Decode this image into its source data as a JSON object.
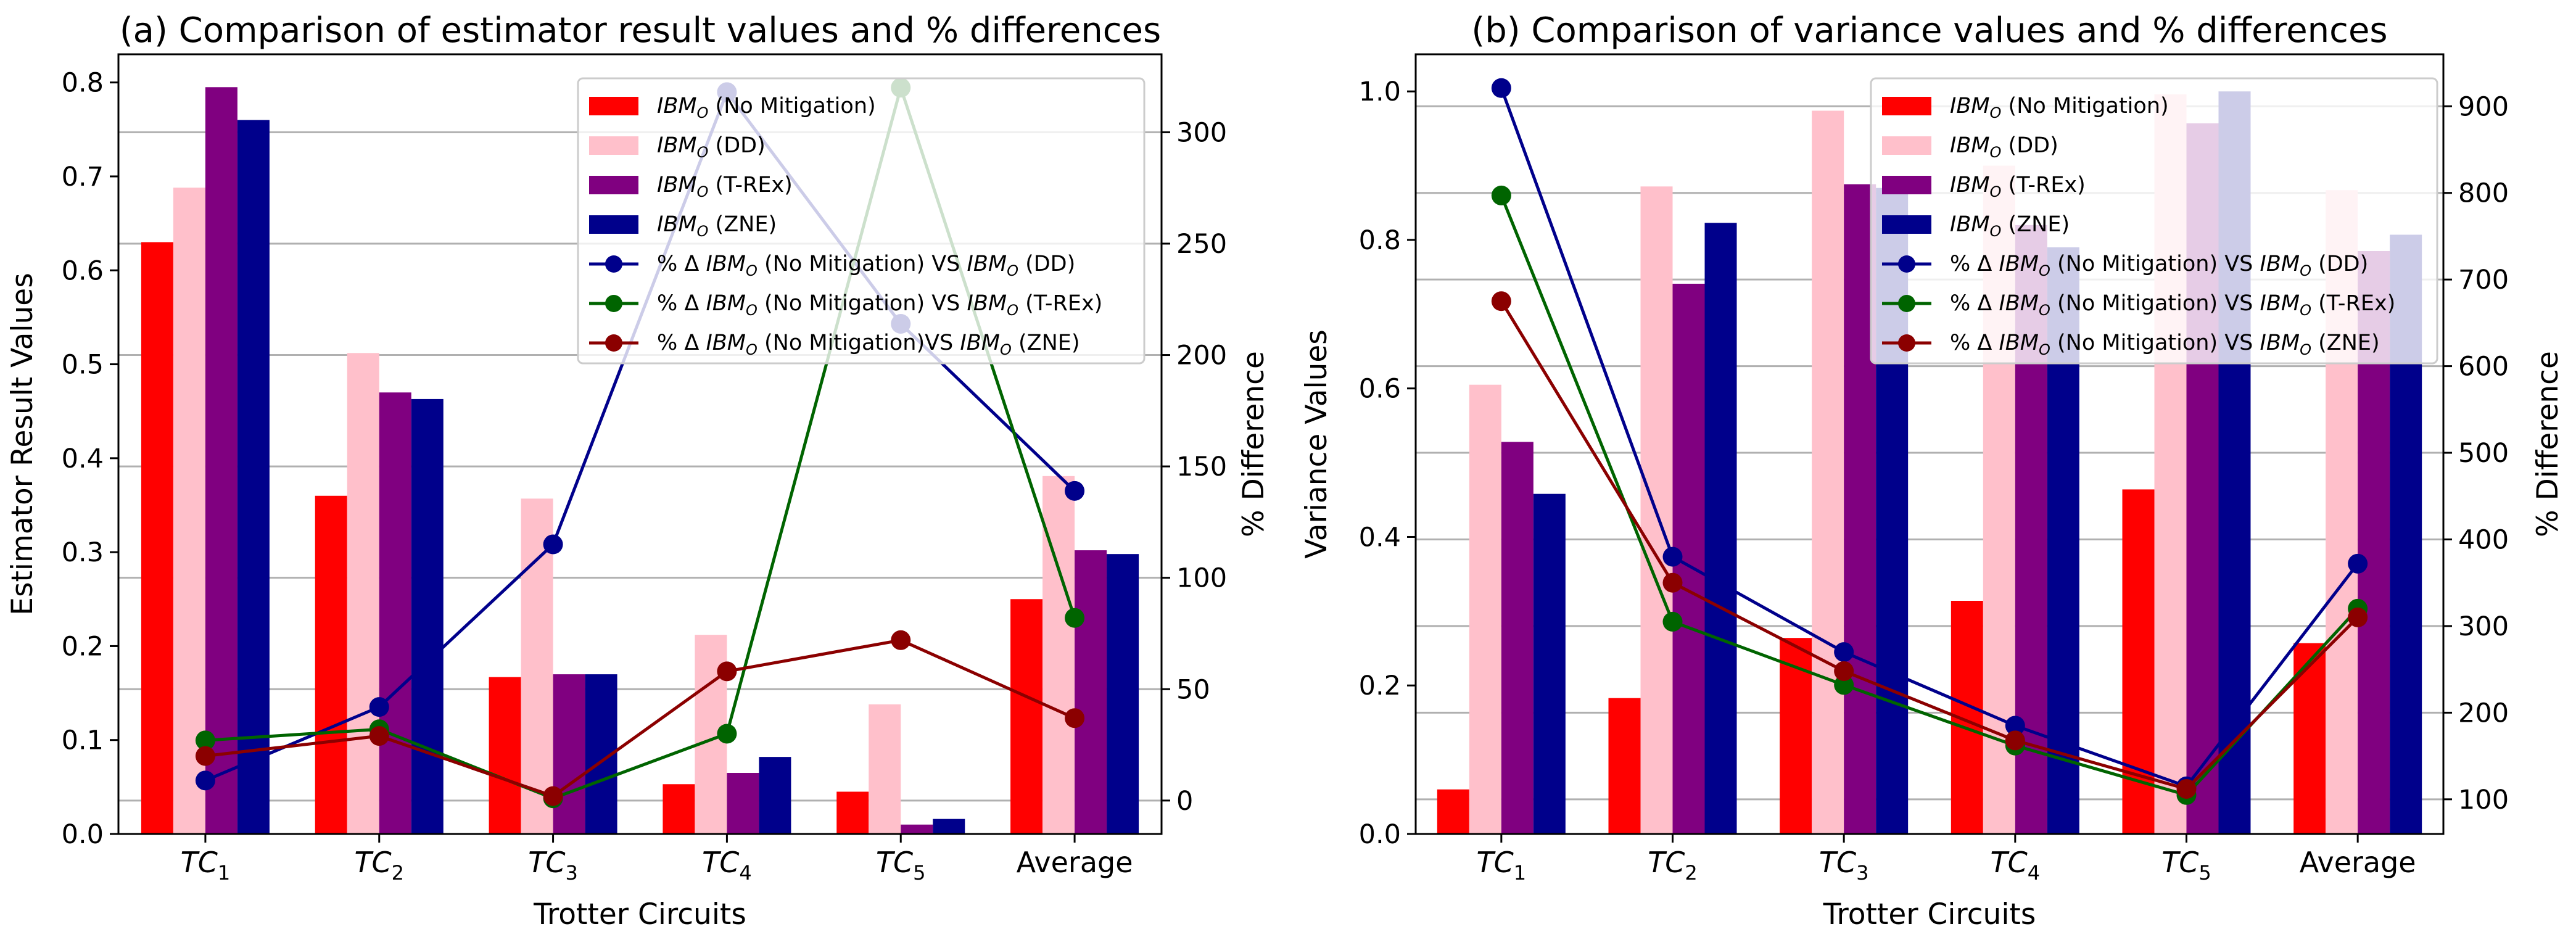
{
  "chart_data": [
    {
      "type": "bar",
      "title": "(a) Comparison of estimator result values and % differences",
      "xlabel": "Trotter Circuits",
      "ylabel": "Estimator Result Values",
      "y2label": "% Difference",
      "categories": [
        [
          "TC",
          "1"
        ],
        [
          "TC",
          "2"
        ],
        [
          "TC",
          "3"
        ],
        [
          "TC",
          "4"
        ],
        [
          "TC",
          "5"
        ],
        [
          "Average",
          ""
        ]
      ],
      "ylim": [
        0,
        0.83
      ],
      "yticks": [
        0.0,
        0.1,
        0.2,
        0.3,
        0.4,
        0.5,
        0.6,
        0.7,
        0.8
      ],
      "ytick_labels": [
        "0.0",
        "0.1",
        "0.2",
        "0.3",
        "0.4",
        "0.5",
        "0.6",
        "0.7",
        "0.8"
      ],
      "y2lim": [
        -15,
        335
      ],
      "y2ticks": [
        0,
        50,
        100,
        150,
        200,
        250,
        300
      ],
      "y2tick_labels": [
        "0",
        "50",
        "100",
        "150",
        "200",
        "250",
        "300"
      ],
      "grid": "horizontal (right axis)",
      "legend_position": "top-right",
      "bar_series": [
        {
          "name": "(No Mitigation)",
          "color": "#ff0000",
          "values": [
            0.63,
            0.36,
            0.167,
            0.053,
            0.045,
            0.25
          ]
        },
        {
          "name": "(DD)",
          "color": "#ffc0cb",
          "values": [
            0.688,
            0.512,
            0.357,
            0.212,
            0.138,
            0.381
          ]
        },
        {
          "name": "(T-REx)",
          "color": "#800080",
          "values": [
            0.795,
            0.47,
            0.17,
            0.065,
            0.01,
            0.302
          ]
        },
        {
          "name": "(ZNE)",
          "color": "#00008b",
          "values": [
            0.76,
            0.463,
            0.17,
            0.082,
            0.016,
            0.298
          ]
        }
      ],
      "line_series": [
        {
          "name": "VS",
          "ref": "(DD)",
          "color": "#00008b",
          "values": [
            9,
            42,
            115,
            318,
            214,
            139
          ]
        },
        {
          "name": "VS",
          "ref": "(T-REx)",
          "color": "#006400",
          "values": [
            27,
            32,
            1,
            30,
            320,
            82
          ]
        },
        {
          "name": "VS",
          "ref": "(ZNE)",
          "color": "#8b0000",
          "values": [
            20,
            29,
            2,
            58,
            72,
            37
          ]
        }
      ]
    },
    {
      "type": "bar",
      "title": "(b) Comparison of variance values and % differences",
      "xlabel": "Trotter Circuits",
      "ylabel": "Variance Values",
      "y2label": "% Difference",
      "categories": [
        [
          "TC",
          "1"
        ],
        [
          "TC",
          "2"
        ],
        [
          "TC",
          "3"
        ],
        [
          "TC",
          "4"
        ],
        [
          "TC",
          "5"
        ],
        [
          "Average",
          ""
        ]
      ],
      "ylim": [
        0,
        1.05
      ],
      "yticks": [
        0.0,
        0.2,
        0.4,
        0.6,
        0.8,
        1.0
      ],
      "ytick_labels": [
        "0.0",
        "0.2",
        "0.4",
        "0.6",
        "0.8",
        "1.0"
      ],
      "y2lim": [
        60,
        960
      ],
      "y2ticks": [
        100,
        200,
        300,
        400,
        500,
        600,
        700,
        800,
        900
      ],
      "y2tick_labels": [
        "100",
        "200",
        "300",
        "400",
        "500",
        "600",
        "700",
        "800",
        "900"
      ],
      "grid": "horizontal (right axis)",
      "legend_position": "top-right",
      "bar_series": [
        {
          "name": "(No Mitigation)",
          "color": "#ff0000",
          "values": [
            0.06,
            0.183,
            0.264,
            0.314,
            0.464,
            0.257
          ]
        },
        {
          "name": "(DD)",
          "color": "#ffc0cb",
          "values": [
            0.605,
            0.872,
            0.974,
            0.9,
            0.996,
            0.867
          ]
        },
        {
          "name": "(T-REx)",
          "color": "#800080",
          "values": [
            0.528,
            0.741,
            0.875,
            0.82,
            0.957,
            0.785
          ]
        },
        {
          "name": "(ZNE)",
          "color": "#00008b",
          "values": [
            0.458,
            0.823,
            0.87,
            0.79,
            1.0,
            0.807
          ]
        }
      ],
      "line_series": [
        {
          "name": "VS",
          "ref": "(DD)",
          "color": "#00008b",
          "values": [
            921,
            380,
            270,
            185,
            115,
            372
          ]
        },
        {
          "name": "VS",
          "ref": "(T-REx)",
          "color": "#006400",
          "values": [
            797,
            305,
            232,
            162,
            105,
            320
          ]
        },
        {
          "name": "VS",
          "ref": "(ZNE)",
          "color": "#8b0000",
          "values": [
            675,
            350,
            248,
            168,
            112,
            310
          ]
        }
      ]
    }
  ],
  "legend": {
    "ibm_base": "IBM",
    "ibm_sub": "O",
    "pct_prefix": "% Δ",
    "no_mit": "(No Mitigation)",
    "no_mit_tight": "(No Mitigation)VS"
  }
}
